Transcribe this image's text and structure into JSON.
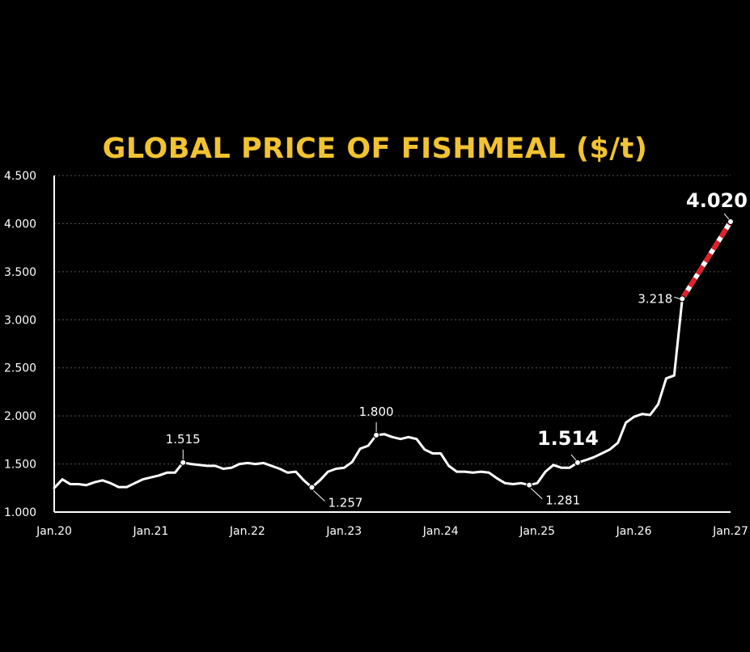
{
  "colors": {
    "background": "#000000",
    "title": "#F2C330",
    "line": "#FFFFFF",
    "projection": "#E0202A",
    "grid": "#555555",
    "highlight_label": "#F2C330"
  },
  "chart_data": {
    "type": "line",
    "title": "GLOBAL PRICE OF FISHMEAL ($/t)",
    "xlabel": "",
    "ylabel": "",
    "ylim": [
      1000,
      4500
    ],
    "xlim": [
      "2020-01",
      "2027-01"
    ],
    "y_ticks": [
      {
        "value": 1000,
        "label": "1.000"
      },
      {
        "value": 1500,
        "label": "1.500"
      },
      {
        "value": 2000,
        "label": "2.000"
      },
      {
        "value": 2500,
        "label": "2.500"
      },
      {
        "value": 3000,
        "label": "3.000"
      },
      {
        "value": 3500,
        "label": "3.500"
      },
      {
        "value": 4000,
        "label": "4.000"
      },
      {
        "value": 4500,
        "label": "4.500"
      }
    ],
    "x_ticks": [
      {
        "value": "2020-01",
        "label": "Jan.20"
      },
      {
        "value": "2021-01",
        "label": "Jan.21"
      },
      {
        "value": "2022-01",
        "label": "Jan.22"
      },
      {
        "value": "2023-01",
        "label": "Jan.23"
      },
      {
        "value": "2024-01",
        "label": "Jan.24"
      },
      {
        "value": "2025-01",
        "label": "Jan.25"
      },
      {
        "value": "2026-01",
        "label": "Jan.26"
      },
      {
        "value": "2027-01",
        "label": "Jan.27"
      }
    ],
    "grid": true,
    "series": [
      {
        "style": "solid",
        "x": [
          "2020-01",
          "2020-02",
          "2020-03",
          "2020-04",
          "2020-05",
          "2020-06",
          "2020-07",
          "2020-08",
          "2020-09",
          "2020-10",
          "2020-11",
          "2020-12",
          "2021-01",
          "2021-02",
          "2021-03",
          "2021-04",
          "2021-05",
          "2021-06",
          "2021-07",
          "2021-08",
          "2021-09",
          "2021-10",
          "2021-11",
          "2021-12",
          "2022-01",
          "2022-02",
          "2022-03",
          "2022-04",
          "2022-05",
          "2022-06",
          "2022-07",
          "2022-08",
          "2022-09",
          "2022-10",
          "2022-11",
          "2022-12",
          "2023-01",
          "2023-02",
          "2023-03",
          "2023-04",
          "2023-05",
          "2023-06",
          "2023-07",
          "2023-08",
          "2023-09",
          "2023-10",
          "2023-11",
          "2023-12",
          "2024-01",
          "2024-02",
          "2024-03",
          "2024-04",
          "2024-05",
          "2024-06",
          "2024-07",
          "2024-08",
          "2024-09",
          "2024-10",
          "2024-11",
          "2024-12",
          "2025-01",
          "2025-02",
          "2025-03",
          "2025-04",
          "2025-05",
          "2025-06",
          "2025-07",
          "2025-08",
          "2025-09",
          "2025-10",
          "2025-11",
          "2025-12",
          "2026-01",
          "2026-02",
          "2026-03",
          "2026-04",
          "2026-05",
          "2026-06",
          "2026-07"
        ],
        "values": [
          1250,
          1340,
          1290,
          1290,
          1280,
          1310,
          1330,
          1300,
          1260,
          1260,
          1300,
          1340,
          1360,
          1380,
          1410,
          1410,
          1515,
          1500,
          1490,
          1480,
          1480,
          1450,
          1460,
          1500,
          1510,
          1500,
          1510,
          1480,
          1450,
          1410,
          1420,
          1330,
          1257,
          1330,
          1420,
          1450,
          1460,
          1520,
          1660,
          1690,
          1800,
          1810,
          1780,
          1760,
          1780,
          1760,
          1650,
          1610,
          1610,
          1480,
          1420,
          1420,
          1410,
          1420,
          1410,
          1350,
          1300,
          1290,
          1300,
          1281,
          1300,
          1420,
          1490,
          1460,
          1460,
          1514,
          1540,
          1570,
          1610,
          1650,
          1720,
          1930,
          1990,
          2020,
          2010,
          2120,
          2390,
          2420,
          3218
        ]
      },
      {
        "style": "dashed",
        "x": [
          "2026-07",
          "2027-01"
        ],
        "values": [
          3218,
          4020
        ]
      }
    ],
    "annotations": [
      {
        "x": "2021-05",
        "y": 1515,
        "label": "1.515",
        "emphasis": false,
        "anchor": "above"
      },
      {
        "x": "2022-09",
        "y": 1257,
        "label": "1.257",
        "emphasis": false,
        "anchor": "below-right"
      },
      {
        "x": "2023-05",
        "y": 1800,
        "label": "1.800",
        "emphasis": false,
        "anchor": "above"
      },
      {
        "x": "2024-12",
        "y": 1281,
        "label": "1.281",
        "emphasis": false,
        "anchor": "below-right"
      },
      {
        "x": "2025-06",
        "y": 1514,
        "label": "1.514",
        "emphasis": true,
        "anchor": "above-left"
      },
      {
        "x": "2026-07",
        "y": 3218,
        "label": "3.218",
        "emphasis": false,
        "anchor": "left"
      },
      {
        "x": "2027-01",
        "y": 4020,
        "label": "4.020",
        "emphasis": true,
        "anchor": "above-left"
      }
    ]
  }
}
